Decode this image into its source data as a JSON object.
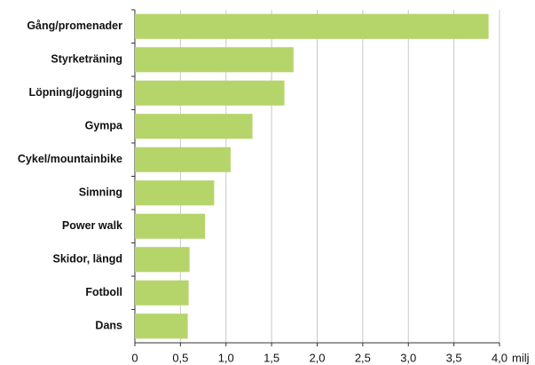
{
  "chart_data": {
    "type": "bar",
    "orientation": "horizontal",
    "categories": [
      "Gång/promenader",
      "Styrketräning",
      "Löpning/joggning",
      "Gympa",
      "Cykel/mountainbike",
      "Simning",
      "Power  walk",
      "Skidor, längd",
      "Fotboll",
      "Dans"
    ],
    "values": [
      3.88,
      1.74,
      1.64,
      1.29,
      1.05,
      0.87,
      0.77,
      0.6,
      0.59,
      0.58
    ],
    "color": "#b5d56a",
    "xlabel": "milj",
    "xlim": [
      0,
      4
    ],
    "xticks": [
      0,
      {
        "value": 0.5,
        "label": "0,5"
      },
      {
        "value": 1,
        "label": "1,0"
      },
      {
        "value": 1.5,
        "label": "1,5"
      },
      {
        "value": 2,
        "label": "2,0"
      },
      {
        "value": 2.5,
        "label": "2,5"
      },
      {
        "value": 3,
        "label": "3,0"
      },
      {
        "value": 3.5,
        "label": "3,5"
      },
      {
        "value": 4,
        "label": "4,0"
      }
    ],
    "grid": true
  }
}
